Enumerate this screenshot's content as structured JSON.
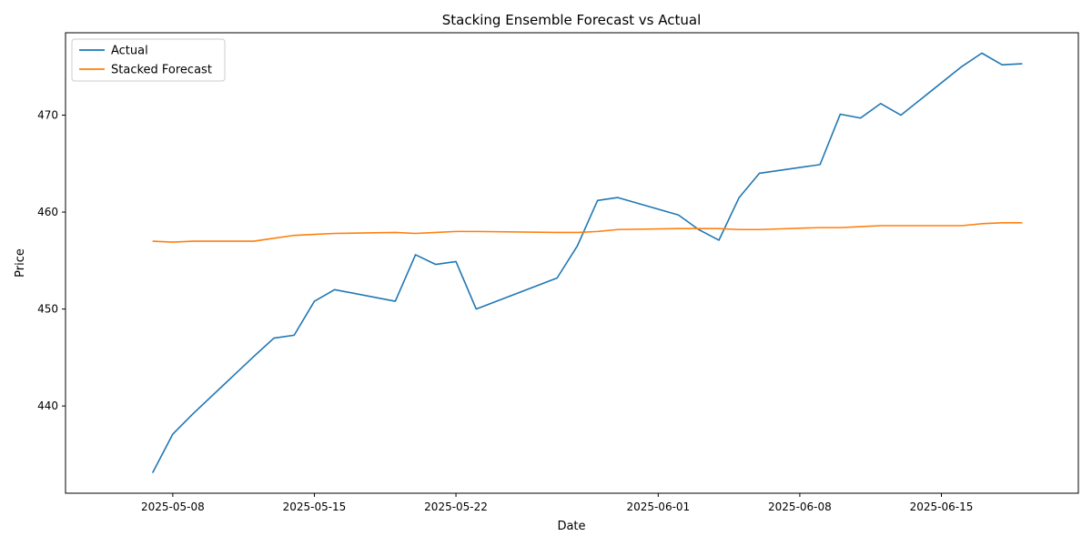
{
  "chart_data": {
    "type": "line",
    "title": "Stacking Ensemble Forecast vs Actual",
    "xlabel": "Date",
    "ylabel": "Price",
    "x_tick_labels": [
      "2025-05-08",
      "2025-05-15",
      "2025-05-22",
      "2025-06-01",
      "2025-06-08",
      "2025-06-15"
    ],
    "x_ticks": [
      "2025-05-08",
      "2025-05-15",
      "2025-05-22",
      "2025-06-01",
      "2025-06-08",
      "2025-06-15"
    ],
    "y_ticks": [
      440,
      450,
      460,
      470
    ],
    "y_tick_labels": [
      "440",
      "450",
      "460",
      "470"
    ],
    "xlim": [
      "2025-05-05",
      "2025-06-19"
    ],
    "ylim": [
      431,
      478.5
    ],
    "grid": false,
    "legend_position": "top-left",
    "series": [
      {
        "name": "Actual",
        "color": "#1f77b4",
        "points": [
          [
            "2025-05-07",
            433.1
          ],
          [
            "2025-05-08",
            437.1
          ],
          [
            "2025-05-09",
            439.2
          ],
          [
            "2025-05-12",
            445.1
          ],
          [
            "2025-05-13",
            447.0
          ],
          [
            "2025-05-14",
            447.3
          ],
          [
            "2025-05-15",
            450.8
          ],
          [
            "2025-05-16",
            452.0
          ],
          [
            "2025-05-19",
            450.8
          ],
          [
            "2025-05-20",
            455.6
          ],
          [
            "2025-05-21",
            454.6
          ],
          [
            "2025-05-22",
            454.9
          ],
          [
            "2025-05-23",
            450.0
          ],
          [
            "2025-05-27",
            453.2
          ],
          [
            "2025-05-28",
            456.5
          ],
          [
            "2025-05-29",
            461.2
          ],
          [
            "2025-05-30",
            461.5
          ],
          [
            "2025-06-02",
            459.7
          ],
          [
            "2025-06-03",
            458.2
          ],
          [
            "2025-06-04",
            457.1
          ],
          [
            "2025-06-05",
            461.5
          ],
          [
            "2025-06-06",
            464.0
          ],
          [
            "2025-06-09",
            464.9
          ],
          [
            "2025-06-10",
            470.1
          ],
          [
            "2025-06-11",
            469.7
          ],
          [
            "2025-06-12",
            471.2
          ],
          [
            "2025-06-13",
            470.0
          ],
          [
            "2025-06-16",
            475.0
          ],
          [
            "2025-06-17",
            476.4
          ],
          [
            "2025-06-18",
            475.2
          ],
          [
            "2025-06-19",
            475.3
          ]
        ]
      },
      {
        "name": "Stacked Forecast",
        "color": "#ff7f0e",
        "points": [
          [
            "2025-05-07",
            457.0
          ],
          [
            "2025-05-08",
            456.9
          ],
          [
            "2025-05-09",
            457.0
          ],
          [
            "2025-05-12",
            457.0
          ],
          [
            "2025-05-13",
            457.3
          ],
          [
            "2025-05-14",
            457.6
          ],
          [
            "2025-05-15",
            457.7
          ],
          [
            "2025-05-16",
            457.8
          ],
          [
            "2025-05-19",
            457.9
          ],
          [
            "2025-05-20",
            457.8
          ],
          [
            "2025-05-21",
            457.9
          ],
          [
            "2025-05-22",
            458.0
          ],
          [
            "2025-05-23",
            458.0
          ],
          [
            "2025-05-27",
            457.9
          ],
          [
            "2025-05-28",
            457.9
          ],
          [
            "2025-05-29",
            458.0
          ],
          [
            "2025-05-30",
            458.2
          ],
          [
            "2025-06-02",
            458.3
          ],
          [
            "2025-06-03",
            458.3
          ],
          [
            "2025-06-04",
            458.3
          ],
          [
            "2025-06-05",
            458.2
          ],
          [
            "2025-06-06",
            458.2
          ],
          [
            "2025-06-09",
            458.4
          ],
          [
            "2025-06-10",
            458.4
          ],
          [
            "2025-06-11",
            458.5
          ],
          [
            "2025-06-12",
            458.6
          ],
          [
            "2025-06-13",
            458.6
          ],
          [
            "2025-06-16",
            458.6
          ],
          [
            "2025-06-17",
            458.8
          ],
          [
            "2025-06-18",
            458.9
          ],
          [
            "2025-06-19",
            458.9
          ]
        ]
      }
    ]
  }
}
